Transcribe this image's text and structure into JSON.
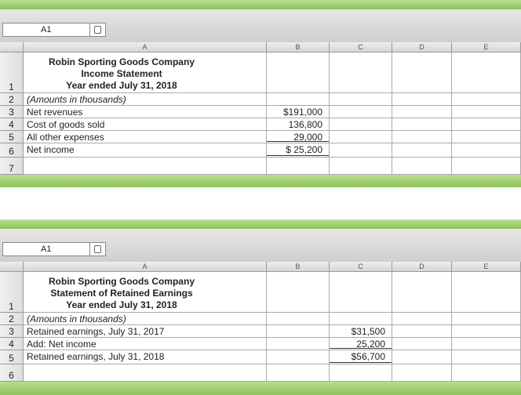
{
  "sheets": [
    {
      "name_box": "A1",
      "columns": [
        "A",
        "B",
        "C",
        "D",
        "E"
      ],
      "rows": [
        {
          "n": 1,
          "A": [
            "Robin Sporting Goods Company",
            "Income Statement",
            "Year ended July 31, 2018"
          ]
        },
        {
          "n": 2,
          "A": "(Amounts in thousands)",
          "italic": true
        },
        {
          "n": 3,
          "A": "Net revenues",
          "B": "$191,000"
        },
        {
          "n": 4,
          "A": "Cost of goods sold",
          "B": "136,800"
        },
        {
          "n": 5,
          "A": "All other expenses",
          "B": "29,000",
          "rule": "single"
        },
        {
          "n": 6,
          "A": "Net income",
          "B": "$ 25,200",
          "rule": "double"
        },
        {
          "n": 7
        }
      ]
    },
    {
      "name_box": "A1",
      "columns": [
        "A",
        "B",
        "C",
        "D",
        "E"
      ],
      "rows": [
        {
          "n": 1,
          "A": [
            "Robin Sporting Goods Company",
            "Statement of Retained Earnings",
            "Year ended July 31, 2018"
          ]
        },
        {
          "n": 2,
          "A": "(Amounts in thousands)",
          "italic": true
        },
        {
          "n": 3,
          "A": "Retained earnings, July 31, 2017",
          "C": "$31,500"
        },
        {
          "n": 4,
          "A": "Add: Net income",
          "C": "25,200",
          "rule": "single"
        },
        {
          "n": 5,
          "A": "Retained earnings, July 31, 2018",
          "C": "$56,700",
          "rule": "double"
        },
        {
          "n": 6
        }
      ]
    }
  ]
}
